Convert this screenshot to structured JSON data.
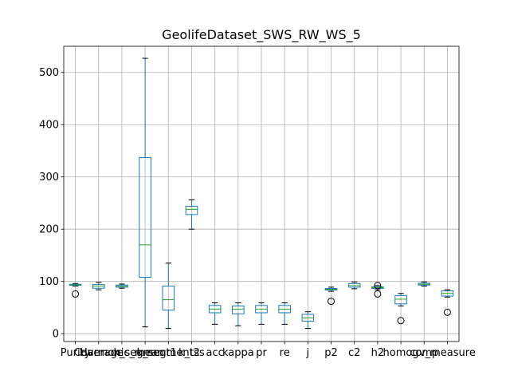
{
  "chart_data": {
    "type": "box",
    "title": "GeolifeDataset_SWS_RW_WS_5",
    "xlabel": "",
    "ylabel": "",
    "ylim": [
      -15,
      550
    ],
    "yticks": [
      0,
      100,
      200,
      300,
      400,
      500
    ],
    "grid": true,
    "colors": {
      "box": "#1f77b4",
      "median": "#2ca02c",
      "whisker": "#000000",
      "grid": "#b0b0b0"
    },
    "categories": [
      "Purity",
      "Coverage",
      "Harmonic_mean",
      "k_segment1",
      "k_segment2",
      "k_tss",
      "acc",
      "kappa",
      "pr",
      "re",
      "j",
      "p2",
      "c2",
      "h2",
      "homog",
      "comp",
      "v_measure"
    ],
    "boxes": [
      {
        "label": "Purity",
        "whislo": 91,
        "q1": 92.5,
        "med": 93.5,
        "q3": 94.5,
        "whishi": 96,
        "fliers": [
          76
        ]
      },
      {
        "label": "Coverage",
        "whislo": 84,
        "q1": 87,
        "med": 91,
        "q3": 94,
        "whishi": 98,
        "fliers": []
      },
      {
        "label": "Harmonic_mean",
        "whislo": 87,
        "q1": 89,
        "med": 91,
        "q3": 93,
        "whishi": 95,
        "fliers": []
      },
      {
        "label": "k_segment1",
        "whislo": 13,
        "q1": 108,
        "med": 170,
        "q3": 337,
        "whishi": 527,
        "fliers": []
      },
      {
        "label": "k_segment2",
        "whislo": 10,
        "q1": 45,
        "med": 65,
        "q3": 91,
        "whishi": 135,
        "fliers": []
      },
      {
        "label": "k_tss",
        "whislo": 200,
        "q1": 228,
        "med": 238,
        "q3": 244,
        "whishi": 256,
        "fliers": []
      },
      {
        "label": "acc",
        "whislo": 18,
        "q1": 40,
        "med": 47,
        "q3": 54,
        "whishi": 59,
        "fliers": []
      },
      {
        "label": "kappa",
        "whislo": 15,
        "q1": 38,
        "med": 47,
        "q3": 53,
        "whishi": 59,
        "fliers": []
      },
      {
        "label": "pr",
        "whislo": 18,
        "q1": 40,
        "med": 47,
        "q3": 54,
        "whishi": 59,
        "fliers": []
      },
      {
        "label": "re",
        "whislo": 18,
        "q1": 40,
        "med": 47,
        "q3": 54,
        "whishi": 59,
        "fliers": []
      },
      {
        "label": "j",
        "whislo": 10,
        "q1": 24,
        "med": 30,
        "q3": 37,
        "whishi": 42,
        "fliers": []
      },
      {
        "label": "p2",
        "whislo": 81,
        "q1": 83.5,
        "med": 85,
        "q3": 86.5,
        "whishi": 89,
        "fliers": [
          62
        ]
      },
      {
        "label": "c2",
        "whislo": 86,
        "q1": 89,
        "med": 92,
        "q3": 96,
        "whishi": 99,
        "fliers": []
      },
      {
        "label": "h2",
        "whislo": 84,
        "q1": 86.5,
        "med": 88,
        "q3": 89.5,
        "whishi": 92,
        "fliers": [
          76,
          92
        ]
      },
      {
        "label": "homog",
        "whislo": 53,
        "q1": 57,
        "med": 66,
        "q3": 73,
        "whishi": 77,
        "fliers": [
          25
        ]
      },
      {
        "label": "comp",
        "whislo": 91,
        "q1": 93,
        "med": 94.5,
        "q3": 96.5,
        "whishi": 99,
        "fliers": []
      },
      {
        "label": "v_measure",
        "whislo": 70,
        "q1": 72,
        "med": 77,
        "q3": 82,
        "whishi": 84,
        "fliers": [
          41
        ]
      }
    ]
  }
}
